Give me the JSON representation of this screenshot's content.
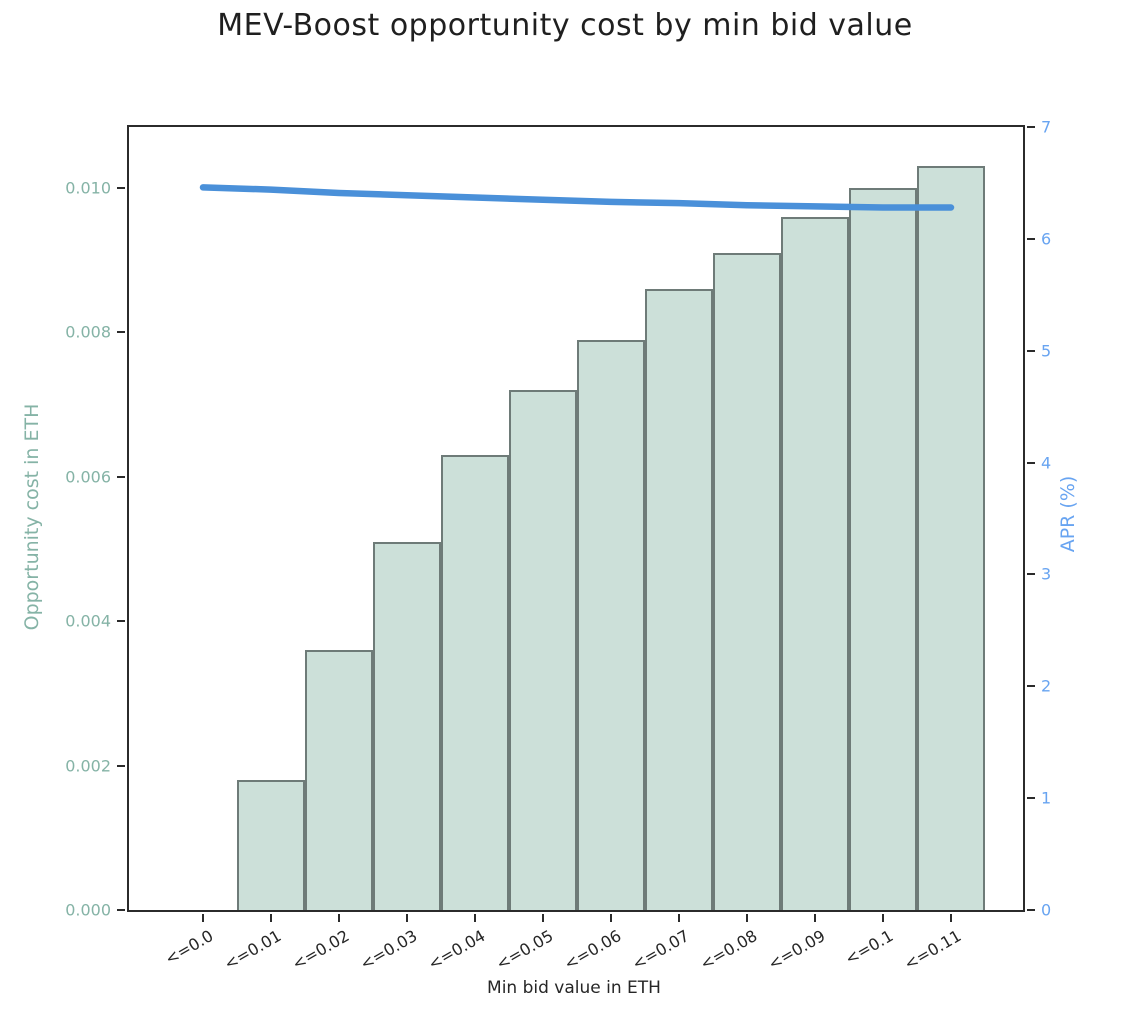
{
  "figure": {
    "background": "#ffffff"
  },
  "chart_data": {
    "type": "bar",
    "title": "MEV-Boost opportunity cost by min bid value",
    "xlabel": "Min bid value in ETH",
    "ylabel_left": "Opportunity cost in ETH",
    "ylabel_right": "APR (%)",
    "categories": [
      "<=0.0",
      "<=0.01",
      "<=0.02",
      "<=0.03",
      "<=0.04",
      "<=0.05",
      "<=0.06",
      "<=0.07",
      "<=0.08",
      "<=0.09",
      "<=0.1",
      "<=0.11"
    ],
    "series": [
      {
        "name": "Opportunity cost in ETH",
        "type": "bar",
        "axis": "left",
        "values": [
          0,
          0.0018,
          0.0036,
          0.0051,
          0.0063,
          0.0072,
          0.0079,
          0.0086,
          0.0091,
          0.0096,
          0.01,
          0.0103
        ]
      },
      {
        "name": "APR (%)",
        "type": "line",
        "axis": "right",
        "values": [
          6.46,
          6.44,
          6.41,
          6.39,
          6.37,
          6.35,
          6.33,
          6.32,
          6.3,
          6.29,
          6.28,
          6.28
        ]
      }
    ],
    "ylim_left": [
      0,
      0.010845
    ],
    "ylim_right": [
      0,
      7
    ],
    "yticks_left": {
      "values": [
        0,
        0.002,
        0.004,
        0.006,
        0.008,
        0.01
      ],
      "labels": [
        "0.000",
        "0.002",
        "0.004",
        "0.006",
        "0.008",
        "0.010"
      ]
    },
    "yticks_right": {
      "values": [
        0,
        1,
        2,
        3,
        4,
        5,
        6,
        7
      ],
      "labels": [
        "0",
        "1",
        "2",
        "3",
        "4",
        "5",
        "6",
        "7"
      ]
    },
    "x_tick_rotation_deg": 30,
    "grid": false,
    "legend": "none",
    "colors": {
      "bar_fill": "#cce0d9",
      "bar_edge": "#6e7b78",
      "line": "#4a90d9",
      "left_axis_text": "#85b3a6",
      "right_axis_text": "#68a4f1",
      "axis_spine": "#2b2b2b",
      "tick_mark": "#2b2b2b",
      "tick_text": "#262626",
      "title_text": "#1f1f1f"
    }
  }
}
